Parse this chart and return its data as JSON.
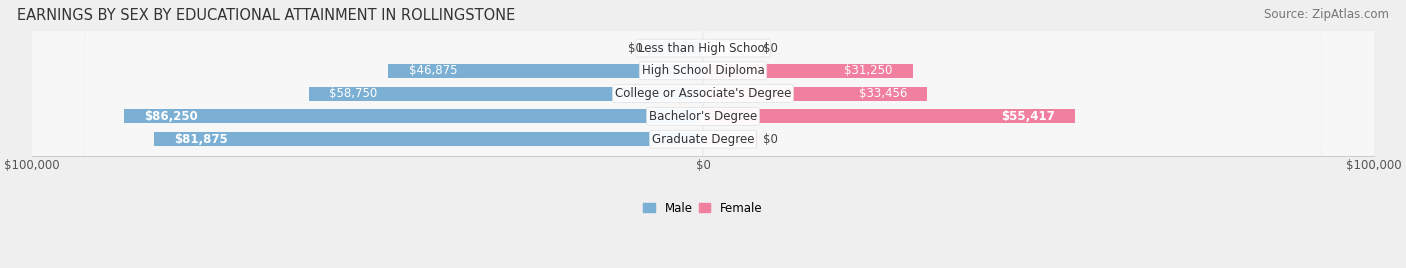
{
  "title": "EARNINGS BY SEX BY EDUCATIONAL ATTAINMENT IN ROLLINGSTONE",
  "source": "Source: ZipAtlas.com",
  "categories": [
    "Less than High School",
    "High School Diploma",
    "College or Associate's Degree",
    "Bachelor's Degree",
    "Graduate Degree"
  ],
  "male_values": [
    0,
    46875,
    58750,
    86250,
    81875
  ],
  "female_values": [
    0,
    31250,
    33456,
    55417,
    0
  ],
  "male_color": "#7bafd4",
  "female_color_normal": "#f07fa0",
  "female_color_zero": "#f5b8cc",
  "male_label": "Male",
  "female_label": "Female",
  "xlim": [
    -100000,
    100000
  ],
  "background_color": "#efefef",
  "row_bg_color": "#f7f7f7",
  "title_fontsize": 10.5,
  "source_fontsize": 8.5,
  "value_fontsize": 8.5,
  "cat_fontsize": 8.5,
  "tick_fontsize": 8.5
}
